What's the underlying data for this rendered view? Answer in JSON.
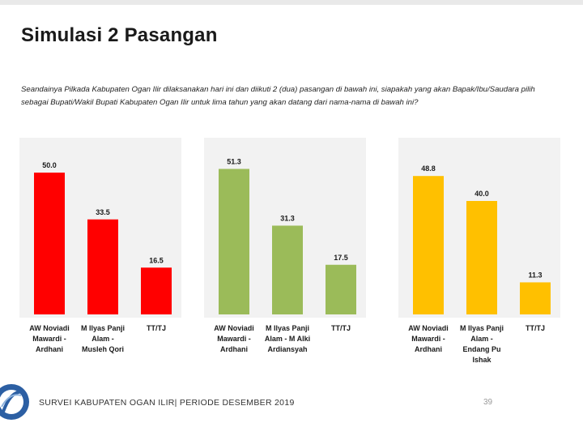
{
  "page": {
    "title": "Simulasi 2 Pasangan",
    "question": "Seandainya Pilkada Kabupaten Ogan Ilir dilaksanakan hari ini dan diikuti 2 (dua) pasangan di bawah ini, siapakah yang akan Bapak/Ibu/Saudara pilih sebagai Bupati/Wakil Bupati Kabupaten Ogan Ilir untuk lima tahun yang akan datang dari nama-nama di bawah ini?",
    "footer": "SURVEI KABUPATEN OGAN ILIR| PERIODE DESEMBER 2019",
    "page_number": "39",
    "logo_icon": "survey-org-logo-icon"
  },
  "chart_data": [
    {
      "type": "bar",
      "color": "#ff0000",
      "categories": [
        [
          "AW Noviadi",
          "Mawardi -",
          "Ardhani"
        ],
        [
          "M Ilyas Panji",
          "Alam -",
          "Musleh Qori"
        ],
        [
          "TT/TJ"
        ]
      ],
      "values": [
        50.0,
        33.5,
        16.5
      ],
      "value_labels": [
        "50.0",
        "33.5",
        "16.5"
      ],
      "ylim": [
        0,
        60
      ],
      "grid": false
    },
    {
      "type": "bar",
      "color": "#9bbb59",
      "categories": [
        [
          "AW Noviadi",
          "Mawardi -",
          "Ardhani"
        ],
        [
          "M Ilyas Panji",
          "Alam - M Alki",
          "Ardiansyah"
        ],
        [
          "TT/TJ"
        ]
      ],
      "values": [
        51.3,
        31.3,
        17.5
      ],
      "value_labels": [
        "51.3",
        "31.3",
        "17.5"
      ],
      "ylim": [
        0,
        60
      ],
      "grid": false
    },
    {
      "type": "bar",
      "color": "#ffc000",
      "categories": [
        [
          "AW Noviadi",
          "Mawardi -",
          "Ardhani"
        ],
        [
          "M Ilyas Panji",
          "Alam -",
          "Endang Pu",
          "Ishak"
        ],
        [
          "TT/TJ"
        ]
      ],
      "values": [
        48.8,
        40.0,
        11.3
      ],
      "value_labels": [
        "48.8",
        "40.0",
        "11.3"
      ],
      "ylim": [
        0,
        60
      ],
      "grid": false
    }
  ]
}
